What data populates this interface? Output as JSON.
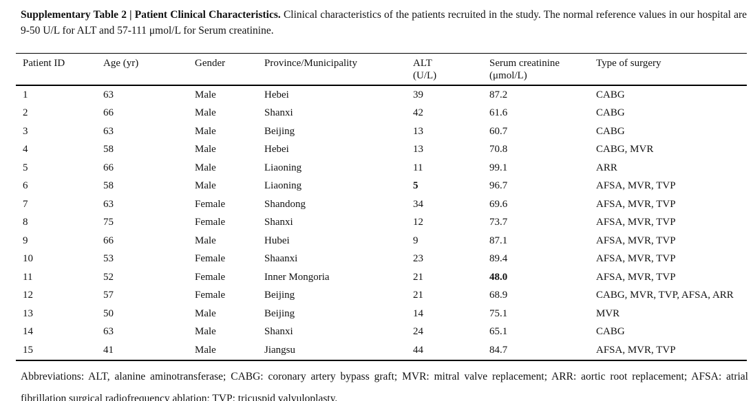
{
  "page": {
    "title_bold": "Supplementary Table 2 | Patient Clinical Characteristics.",
    "title_text": "Clinical characteristics of the patients recruited in the study. The normal reference values in our hospital are 9-50 U/L for ALT and 57-111 μmol/L for Serum creatinine.",
    "footnote": "Abbreviations: ALT, alanine aminotransferase; CABG: coronary artery bypass graft; MVR: mitral valve replacement; ARR: aortic root replacement; AFSA: atrial fibrillation surgical radiofrequency ablation; TVP: tricuspid valvuloplasty."
  },
  "table": {
    "columns": [
      "Patient ID",
      "Age (yr)",
      "Gender",
      "Province/Municipality",
      "ALT\n(U/L)",
      "Serum creatinine\n(μmol/L)",
      "Type of surgery"
    ],
    "rows": [
      [
        "1",
        "63",
        "Male",
        "Hebei",
        "39",
        "87.2",
        "CABG"
      ],
      [
        "2",
        "66",
        "Male",
        "Shanxi",
        "42",
        "61.6",
        "CABG"
      ],
      [
        "3",
        "63",
        "Male",
        "Beijing",
        "13",
        "60.7",
        "CABG"
      ],
      [
        "4",
        "58",
        "Male",
        "Hebei",
        "13",
        "70.8",
        "CABG, MVR"
      ],
      [
        "5",
        "66",
        "Male",
        "Liaoning",
        "11",
        "99.1",
        "ARR"
      ],
      [
        "6",
        "58",
        "Male",
        "Liaoning",
        "5",
        "96.7",
        "AFSA, MVR, TVP"
      ],
      [
        "7",
        "63",
        "Female",
        "Shandong",
        "34",
        "69.6",
        "AFSA, MVR, TVP"
      ],
      [
        "8",
        "75",
        "Female",
        "Shanxi",
        "12",
        "73.7",
        "AFSA, MVR, TVP"
      ],
      [
        "9",
        "66",
        "Male",
        "Hubei",
        "9",
        "87.1",
        "AFSA, MVR, TVP"
      ],
      [
        "10",
        "53",
        "Female",
        "Shaanxi",
        "23",
        "89.4",
        "AFSA, MVR, TVP"
      ],
      [
        "11",
        "52",
        "Female",
        "Inner Mongoria",
        "21",
        "48.0",
        "AFSA, MVR, TVP"
      ],
      [
        "12",
        "57",
        "Female",
        "Beijing",
        "21",
        "68.9",
        "CABG, MVR, TVP, AFSA, ARR"
      ],
      [
        "13",
        "50",
        "Male",
        "Beijing",
        "14",
        "75.1",
        "MVR"
      ],
      [
        "14",
        "63",
        "Male",
        "Shanxi",
        "24",
        "65.1",
        "CABG"
      ],
      [
        "15",
        "41",
        "Male",
        "Jiangsu",
        "44",
        "84.7",
        "AFSA, MVR, TVP"
      ]
    ],
    "bold_cells": [
      [
        5,
        4
      ],
      [
        10,
        5
      ]
    ]
  }
}
